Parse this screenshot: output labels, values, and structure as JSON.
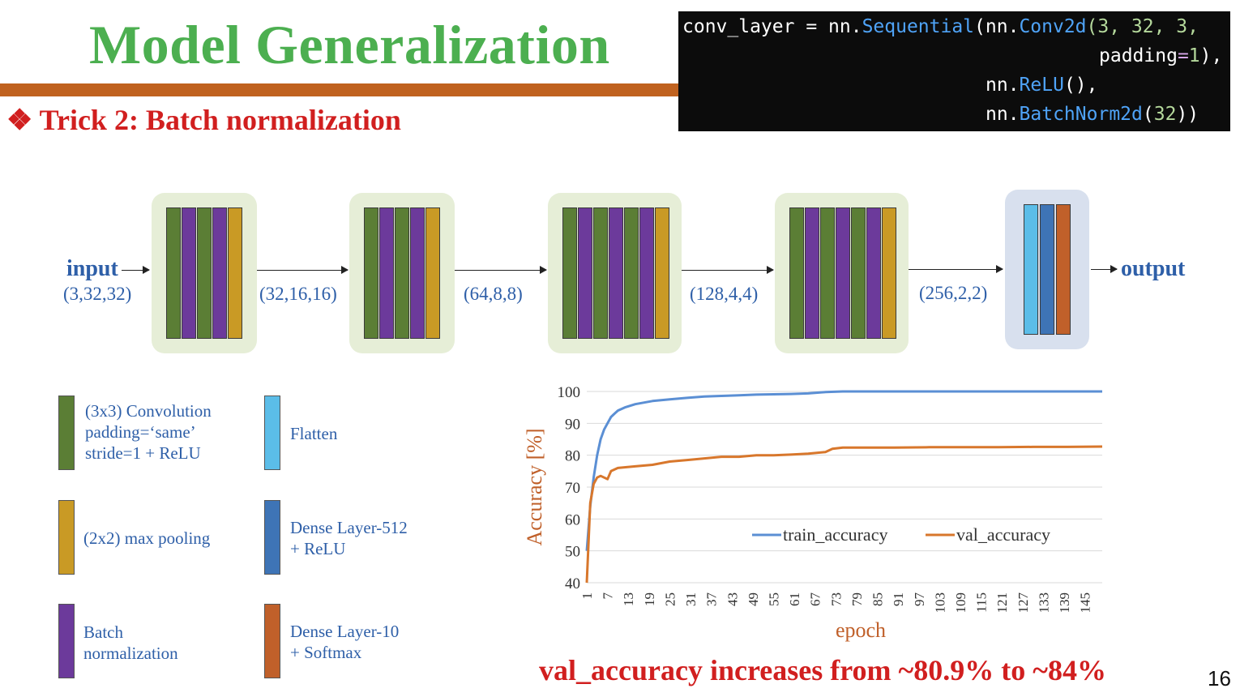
{
  "title": "Model Generalization",
  "subtitle": "❖ Trick 2: Batch normalization",
  "code": {
    "line1_a": "conv_layer = nn.",
    "line1_b": "Sequential",
    "line1_c": "(nn.",
    "line1_d": "Conv2d",
    "line1_e": "(3, 32, 3,",
    "line2_a": "padding",
    "line2_b": "=",
    "line2_c": "1",
    "line2_d": "),",
    "line3_a": "nn.",
    "line3_b": "ReLU",
    "line3_c": "(),",
    "line4_a": "nn.",
    "line4_b": "BatchNorm2d",
    "line4_c": "(",
    "line4_d": "32",
    "line4_e": "))"
  },
  "flow": {
    "input_label": "input",
    "input_shape": "(3,32,32)",
    "shape_1": "(32,16,16)",
    "shape_2": "(64,8,8)",
    "shape_3": "(128,4,4)",
    "shape_4": "(256,2,2)",
    "output_label": "output"
  },
  "colors": {
    "conv": "#5b7e35",
    "batchnorm": "#6c3a9b",
    "maxpool": "#c99a25",
    "flatten": "#5bbde8",
    "dense512": "#3e74b6",
    "dense10": "#c0602a",
    "train_line": "#5b8fd4",
    "val_line": "#d8772c"
  },
  "legend": {
    "conv_l1": "(3x3) Convolution",
    "conv_l2": "padding=‘same’",
    "conv_l3": "stride=1 + ReLU",
    "pool": "(2x2) max pooling",
    "bn_l1": "Batch",
    "bn_l2": "normalization",
    "flatten": "Flatten",
    "dense512_l1": "Dense Layer-512",
    "dense512_l2": "+ ReLU",
    "dense10_l1": "Dense Layer-10",
    "dense10_l2": "+ Softmax"
  },
  "chart_data": {
    "type": "line",
    "xlabel": "epoch",
    "ylabel": "Accuracy [%]",
    "ylim": [
      40,
      100
    ],
    "yticks": [
      40,
      50,
      60,
      70,
      80,
      90,
      100
    ],
    "xticks": [
      "1",
      "7",
      "13",
      "19",
      "25",
      "31",
      "37",
      "43",
      "49",
      "55",
      "61",
      "67",
      "73",
      "79",
      "85",
      "91",
      "97",
      "103",
      "109",
      "115",
      "121",
      "127",
      "133",
      "139",
      "145"
    ],
    "x_range": [
      1,
      150
    ],
    "grid": true,
    "legend_position": "inside-bottom",
    "series": [
      {
        "name": "train_accuracy",
        "points": [
          [
            1,
            50
          ],
          [
            2,
            64
          ],
          [
            3,
            73
          ],
          [
            4,
            80
          ],
          [
            5,
            85
          ],
          [
            6,
            88
          ],
          [
            7,
            90
          ],
          [
            8,
            92
          ],
          [
            9,
            93
          ],
          [
            10,
            94
          ],
          [
            12,
            95
          ],
          [
            15,
            96
          ],
          [
            20,
            97
          ],
          [
            25,
            97.5
          ],
          [
            30,
            98
          ],
          [
            35,
            98.4
          ],
          [
            40,
            98.6
          ],
          [
            45,
            98.8
          ],
          [
            50,
            99
          ],
          [
            55,
            99.1
          ],
          [
            60,
            99.2
          ],
          [
            65,
            99.4
          ],
          [
            70,
            99.8
          ],
          [
            75,
            100
          ],
          [
            150,
            100
          ]
        ]
      },
      {
        "name": "val_accuracy",
        "points": [
          [
            1,
            40
          ],
          [
            2,
            65
          ],
          [
            3,
            71
          ],
          [
            4,
            73
          ],
          [
            5,
            73.5
          ],
          [
            7,
            72.5
          ],
          [
            8,
            75
          ],
          [
            10,
            76
          ],
          [
            15,
            76.5
          ],
          [
            20,
            77
          ],
          [
            25,
            78
          ],
          [
            30,
            78.5
          ],
          [
            35,
            79
          ],
          [
            40,
            79.5
          ],
          [
            45,
            79.5
          ],
          [
            50,
            80
          ],
          [
            55,
            80
          ],
          [
            60,
            80.2
          ],
          [
            65,
            80.5
          ],
          [
            70,
            81
          ],
          [
            72,
            82
          ],
          [
            75,
            82.4
          ],
          [
            80,
            82.4
          ],
          [
            90,
            82.4
          ],
          [
            100,
            82.5
          ],
          [
            110,
            82.5
          ],
          [
            120,
            82.5
          ],
          [
            130,
            82.6
          ],
          [
            140,
            82.6
          ],
          [
            150,
            82.7
          ]
        ]
      }
    ]
  },
  "conclusion": "val_accuracy increases from ~80.9% to ~84%",
  "page_number": "16"
}
